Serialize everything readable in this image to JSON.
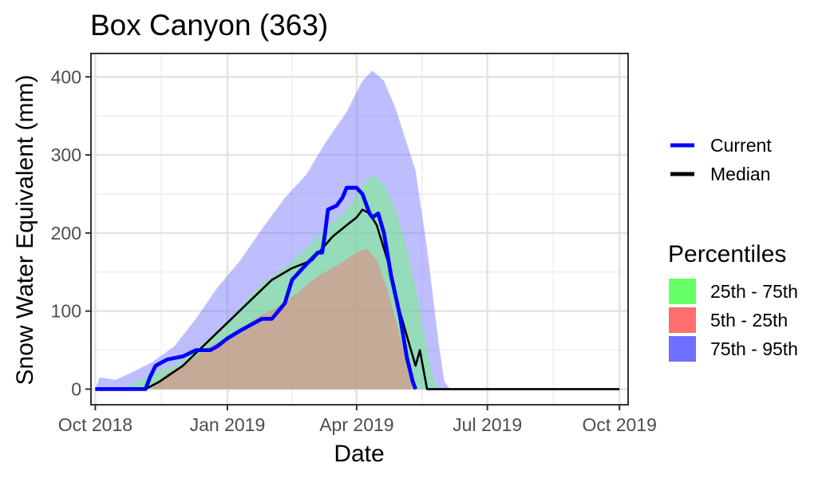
{
  "chart_data": {
    "type": "area",
    "title": "Box Canyon (363)",
    "xlabel": "Date",
    "ylabel": "Snow Water Equivalent (mm)",
    "xlim": [
      "2018-09-28",
      "2019-10-07"
    ],
    "ylim": [
      -20,
      430
    ],
    "x_ticks": [
      "2018-10-01",
      "2019-01-01",
      "2019-04-01",
      "2019-07-01",
      "2019-10-01"
    ],
    "x_tick_labels": [
      "Oct 2018",
      "Jan 2019",
      "Apr 2019",
      "Jul 2019",
      "Oct 2019"
    ],
    "y_ticks": [
      0,
      100,
      200,
      300,
      400
    ],
    "y_tick_labels": [
      "0",
      "100",
      "200",
      "300",
      "400"
    ],
    "grid": true,
    "legend": {
      "placement": "right",
      "lines_title": "",
      "lines": [
        {
          "label": "Current",
          "color": "#0000ff"
        },
        {
          "label": "Median",
          "color": "#000000"
        }
      ],
      "percentiles_title": "Percentiles",
      "percentiles": [
        {
          "label": "25th - 75th",
          "color": "#66ff66"
        },
        {
          "label": "5th - 25th",
          "color": "#ff6e6e"
        },
        {
          "label": "75th - 95th",
          "color": "#6e6eff"
        }
      ]
    },
    "bands": [
      {
        "name": "75th - 95th",
        "color": "#6e6eff",
        "opacity": 0.45,
        "x": [
          "2018-10-01",
          "2018-10-04",
          "2018-10-15",
          "2018-10-25",
          "2018-11-10",
          "2018-11-25",
          "2018-12-10",
          "2018-12-25",
          "2019-01-10",
          "2019-01-25",
          "2019-02-10",
          "2019-02-25",
          "2019-03-10",
          "2019-03-25",
          "2019-04-05",
          "2019-04-12",
          "2019-04-20",
          "2019-04-28",
          "2019-05-05",
          "2019-05-12",
          "2019-05-20",
          "2019-05-28",
          "2019-06-01",
          "2019-06-05"
        ],
        "lower": [
          0,
          0,
          0,
          0,
          0,
          0,
          0,
          0,
          0,
          0,
          0,
          0,
          0,
          0,
          0,
          0,
          0,
          0,
          0,
          0,
          0,
          0,
          0,
          0
        ],
        "upper": [
          0,
          15,
          12,
          20,
          35,
          55,
          90,
          130,
          165,
          205,
          245,
          275,
          315,
          355,
          395,
          408,
          395,
          360,
          320,
          280,
          180,
          60,
          10,
          0
        ]
      },
      {
        "name": "25th - 75th",
        "color": "#66ff66",
        "opacity": 0.45,
        "x": [
          "2018-10-25",
          "2018-11-10",
          "2018-11-25",
          "2018-12-10",
          "2018-12-25",
          "2019-01-10",
          "2019-01-25",
          "2019-02-10",
          "2019-02-25",
          "2019-03-10",
          "2019-03-25",
          "2019-04-05",
          "2019-04-12",
          "2019-04-20",
          "2019-04-28",
          "2019-05-05",
          "2019-05-12",
          "2019-05-18",
          "2019-05-24",
          "2019-05-28"
        ],
        "lower": [
          0,
          0,
          0,
          0,
          0,
          0,
          0,
          0,
          0,
          0,
          0,
          0,
          0,
          0,
          0,
          0,
          0,
          0,
          0,
          0
        ],
        "upper": [
          5,
          20,
          30,
          50,
          75,
          105,
          135,
          155,
          180,
          205,
          230,
          260,
          275,
          262,
          230,
          185,
          130,
          70,
          15,
          0
        ]
      },
      {
        "name": "5th - 25th",
        "color": "#ff6e6e",
        "opacity": 0.45,
        "x": [
          "2018-11-08",
          "2018-11-20",
          "2018-12-05",
          "2018-12-20",
          "2019-01-05",
          "2019-01-20",
          "2019-02-05",
          "2019-02-20",
          "2019-03-05",
          "2019-03-20",
          "2019-04-01",
          "2019-04-08",
          "2019-04-15",
          "2019-04-22",
          "2019-04-28",
          "2019-05-05",
          "2019-05-10",
          "2019-05-13"
        ],
        "lower": [
          0,
          0,
          0,
          0,
          0,
          0,
          0,
          0,
          0,
          0,
          0,
          0,
          0,
          0,
          0,
          0,
          0,
          0
        ],
        "upper": [
          0,
          20,
          35,
          55,
          70,
          90,
          105,
          125,
          145,
          160,
          175,
          180,
          165,
          130,
          90,
          40,
          5,
          0
        ]
      }
    ],
    "series": [
      {
        "name": "Median",
        "color": "#000000",
        "x": [
          "2018-10-01",
          "2018-11-05",
          "2018-11-15",
          "2018-12-01",
          "2018-12-15",
          "2019-01-01",
          "2019-01-15",
          "2019-02-01",
          "2019-02-15",
          "2019-03-01",
          "2019-03-15",
          "2019-03-25",
          "2019-04-01",
          "2019-04-05",
          "2019-04-10",
          "2019-04-15",
          "2019-04-20",
          "2019-04-25",
          "2019-05-01",
          "2019-05-08",
          "2019-05-12",
          "2019-05-15",
          "2019-05-20",
          "2019-06-01",
          "2019-08-01",
          "2019-10-01"
        ],
        "y": [
          0,
          0,
          10,
          30,
          55,
          85,
          110,
          140,
          155,
          165,
          195,
          210,
          220,
          230,
          225,
          210,
          180,
          150,
          100,
          55,
          30,
          50,
          0,
          0,
          0,
          0
        ]
      },
      {
        "name": "Current",
        "color": "#0000ff",
        "x": [
          "2018-10-01",
          "2018-11-05",
          "2018-11-08",
          "2018-11-12",
          "2018-11-20",
          "2018-12-01",
          "2018-12-10",
          "2018-12-20",
          "2018-12-25",
          "2019-01-01",
          "2019-01-10",
          "2019-01-15",
          "2019-01-25",
          "2019-02-01",
          "2019-02-10",
          "2019-02-15",
          "2019-02-25",
          "2019-03-05",
          "2019-03-08",
          "2019-03-10",
          "2019-03-12",
          "2019-03-18",
          "2019-03-22",
          "2019-03-25",
          "2019-04-01",
          "2019-04-05",
          "2019-04-10",
          "2019-04-12",
          "2019-04-16",
          "2019-04-20",
          "2019-04-25",
          "2019-05-01",
          "2019-05-06",
          "2019-05-10",
          "2019-05-12"
        ],
        "y": [
          0,
          0,
          15,
          30,
          38,
          42,
          50,
          50,
          55,
          65,
          75,
          80,
          90,
          90,
          110,
          140,
          160,
          175,
          175,
          200,
          230,
          235,
          245,
          258,
          258,
          250,
          225,
          220,
          225,
          200,
          145,
          95,
          40,
          10,
          0
        ]
      }
    ]
  }
}
